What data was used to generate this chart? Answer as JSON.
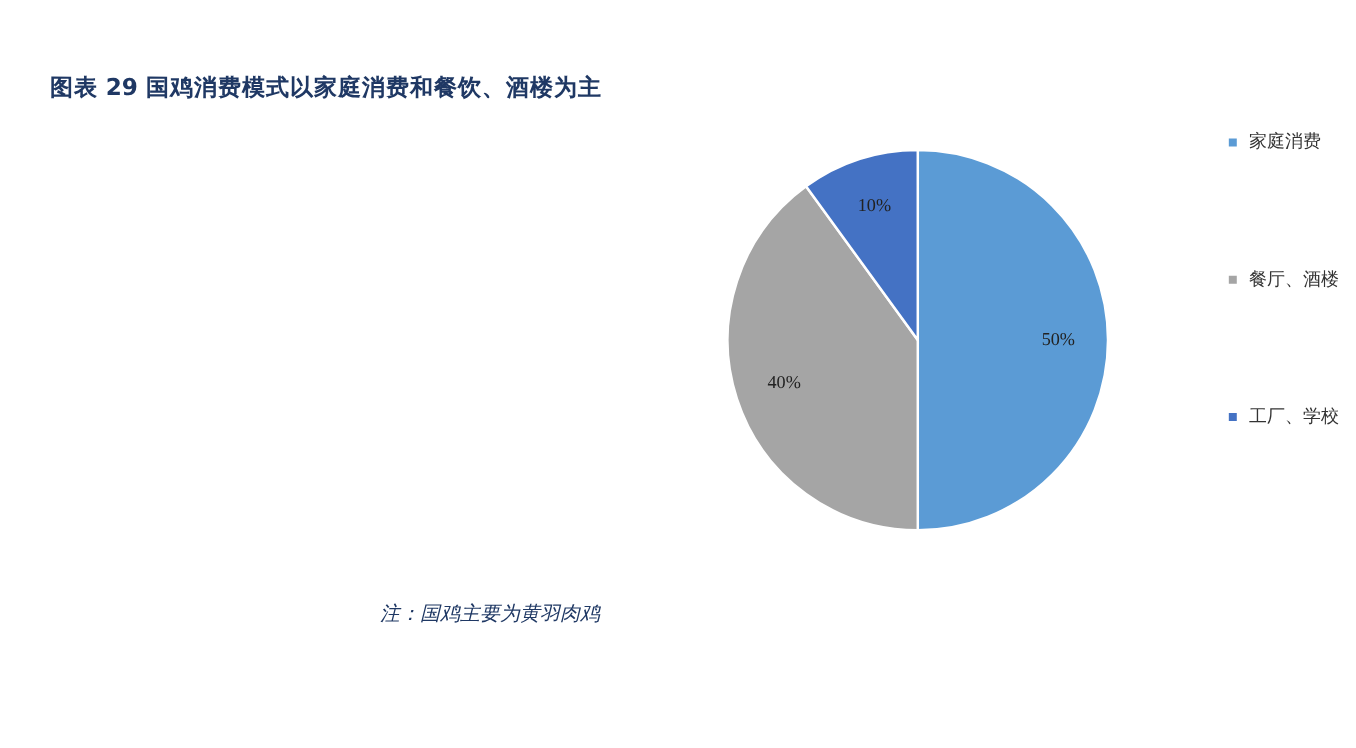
{
  "chart_data": {
    "type": "pie",
    "title": "图表 29   国鸡消费模式以家庭消费和餐饮、酒楼为主",
    "categories": [
      "家庭消费",
      "餐厅、酒楼",
      "工厂、学校"
    ],
    "values": [
      50,
      40,
      10
    ],
    "colors": [
      "#5b9bd5",
      "#a5a5a5",
      "#4472c4"
    ],
    "value_labels": [
      "50%",
      "40%",
      "10%"
    ],
    "legend": "right",
    "annotations": [
      "注：国鸡主要为黄羽肉鸡"
    ]
  }
}
